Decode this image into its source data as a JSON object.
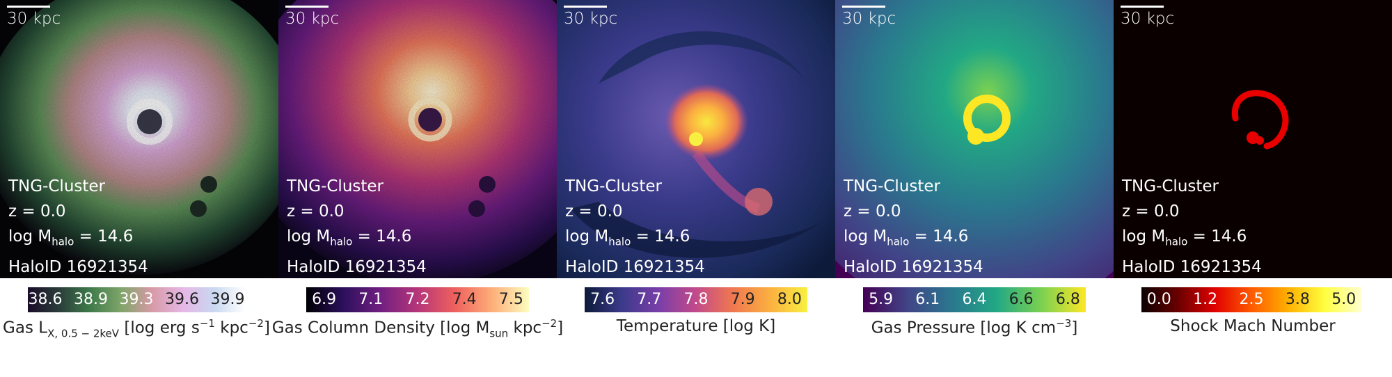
{
  "panels": [
    {
      "scale_label": "30 kpc",
      "sim": "TNG-Cluster",
      "redshift": "z = 0.0",
      "mass_prefix": "log M",
      "mass_sub": "halo",
      "mass_suffix": " = 14.6",
      "halo": "HaloID 16921354",
      "ticks": [
        "38.6",
        "38.9",
        "39.3",
        "39.6",
        "39.9"
      ],
      "tick_colors": [
        "#ffffff",
        "#ffffff",
        "#ffffff",
        "#222222",
        "#222222"
      ],
      "cmap": [
        "#1a0d2a",
        "#2a3d3a",
        "#3f7a4a",
        "#7fa56a",
        "#d79aa6",
        "#e6b7e6",
        "#c8d8f0",
        "#ffffff"
      ],
      "label_html_parts": {
        "a": "Gas L",
        "sub": "X, 0.5 − 2keV",
        "b": " [log erg s",
        "sup1": "−1",
        "c": " kpc",
        "sup2": "−2",
        "d": "]"
      },
      "label_text": "Gas LX, 0.5 − 2keV [log erg s−1 kpc−2]"
    },
    {
      "scale_label": "30 kpc",
      "sim": "TNG-Cluster",
      "redshift": "z = 0.0",
      "mass_prefix": "log M",
      "mass_sub": "halo",
      "mass_suffix": " = 14.6",
      "halo": "HaloID 16921354",
      "ticks": [
        "6.9",
        "7.1",
        "7.2",
        "7.4",
        "7.5"
      ],
      "tick_colors": [
        "#ffffff",
        "#ffffff",
        "#ffffff",
        "#222222",
        "#222222"
      ],
      "cmap": [
        "#000004",
        "#2c105c",
        "#711f81",
        "#b63679",
        "#ee605e",
        "#fdae78",
        "#fcfdbf"
      ]
    },
    {
      "scale_label": "30 kpc",
      "sim": "TNG-Cluster",
      "redshift": "z = 0.0",
      "mass_prefix": "log M",
      "mass_sub": "halo",
      "mass_suffix": " = 14.6",
      "halo": "HaloID 16921354",
      "ticks": [
        "7.6",
        "7.7",
        "7.8",
        "7.9",
        "8.0"
      ],
      "tick_colors": [
        "#ffffff",
        "#ffffff",
        "#ffffff",
        "#222222",
        "#222222"
      ],
      "cmap": [
        "#0d1a3a",
        "#3b3a8a",
        "#7a3fa8",
        "#c24a8a",
        "#f07850",
        "#fbb040",
        "#f8f040"
      ]
    },
    {
      "scale_label": "30 kpc",
      "sim": "TNG-Cluster",
      "redshift": "z = 0.0",
      "mass_prefix": "log M",
      "mass_sub": "halo",
      "mass_suffix": " = 14.6",
      "halo": "HaloID 16921354",
      "ticks": [
        "5.9",
        "6.1",
        "6.4",
        "6.6",
        "6.8"
      ],
      "tick_colors": [
        "#ffffff",
        "#ffffff",
        "#ffffff",
        "#222222",
        "#222222"
      ],
      "cmap": [
        "#440154",
        "#414487",
        "#2a788e",
        "#22a884",
        "#7ad151",
        "#fde725"
      ]
    },
    {
      "scale_label": "30 kpc",
      "sim": "TNG-Cluster",
      "redshift": "z = 0.0",
      "mass_prefix": "log M",
      "mass_sub": "halo",
      "mass_suffix": " = 14.6",
      "halo": "HaloID 16921354",
      "ticks": [
        "0.0",
        "1.2",
        "2.5",
        "3.8",
        "5.0"
      ],
      "tick_colors": [
        "#ffffff",
        "#ffffff",
        "#ffffff",
        "#222222",
        "#222222"
      ],
      "cmap": [
        "#0b0000",
        "#6a0000",
        "#e00000",
        "#ff5a00",
        "#ffb000",
        "#ffff40",
        "#ffffd0"
      ]
    }
  ],
  "colorbar_labels": {
    "p2": {
      "a": "Gas Column Density [log M",
      "sub": "sun",
      "b": " kpc",
      "sup": "−2",
      "c": "]"
    },
    "p3": "Temperature [log K]",
    "p4": {
      "a": "Gas Pressure [log K cm",
      "sup": "−3",
      "b": "]"
    },
    "p5": "Shock Mach Number"
  }
}
